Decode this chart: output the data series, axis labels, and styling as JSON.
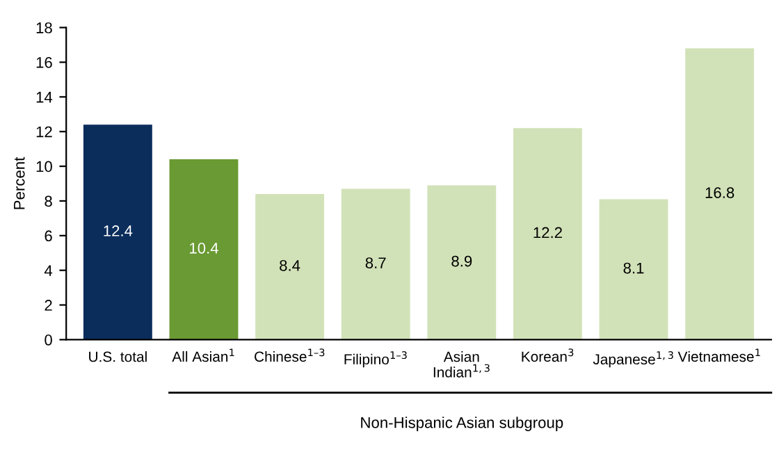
{
  "chart_data": {
    "type": "bar",
    "ylabel": "Percent",
    "categories": [
      "U.S. total",
      "All Asian$^{1}$",
      "Chinese$^{1–3}$",
      "Filipino$^{1–3}$",
      "Asian\nIndian$^{1,3}$",
      "Korean$^{3}$",
      "Japanese$^{1,3}$",
      "Vietnamese$^{1}$"
    ],
    "values": [
      12.4,
      10.4,
      8.4,
      8.7,
      8.9,
      12.2,
      8.1,
      16.8
    ],
    "colors": [
      "#0b2d5b",
      "#6a9a33",
      "#d2e2b8",
      "#d2e2b8",
      "#d2e2b8",
      "#d2e2b8",
      "#d2e2b8",
      "#d2e2b8"
    ],
    "data_labels": true,
    "ylim": [
      0,
      18
    ],
    "yticks": [
      0,
      2,
      4,
      6,
      8,
      10,
      12,
      14,
      16,
      18
    ],
    "grid": false,
    "legend": false,
    "annotations": [
      "Non-Hispanic Asian subgroup"
    ]
  }
}
